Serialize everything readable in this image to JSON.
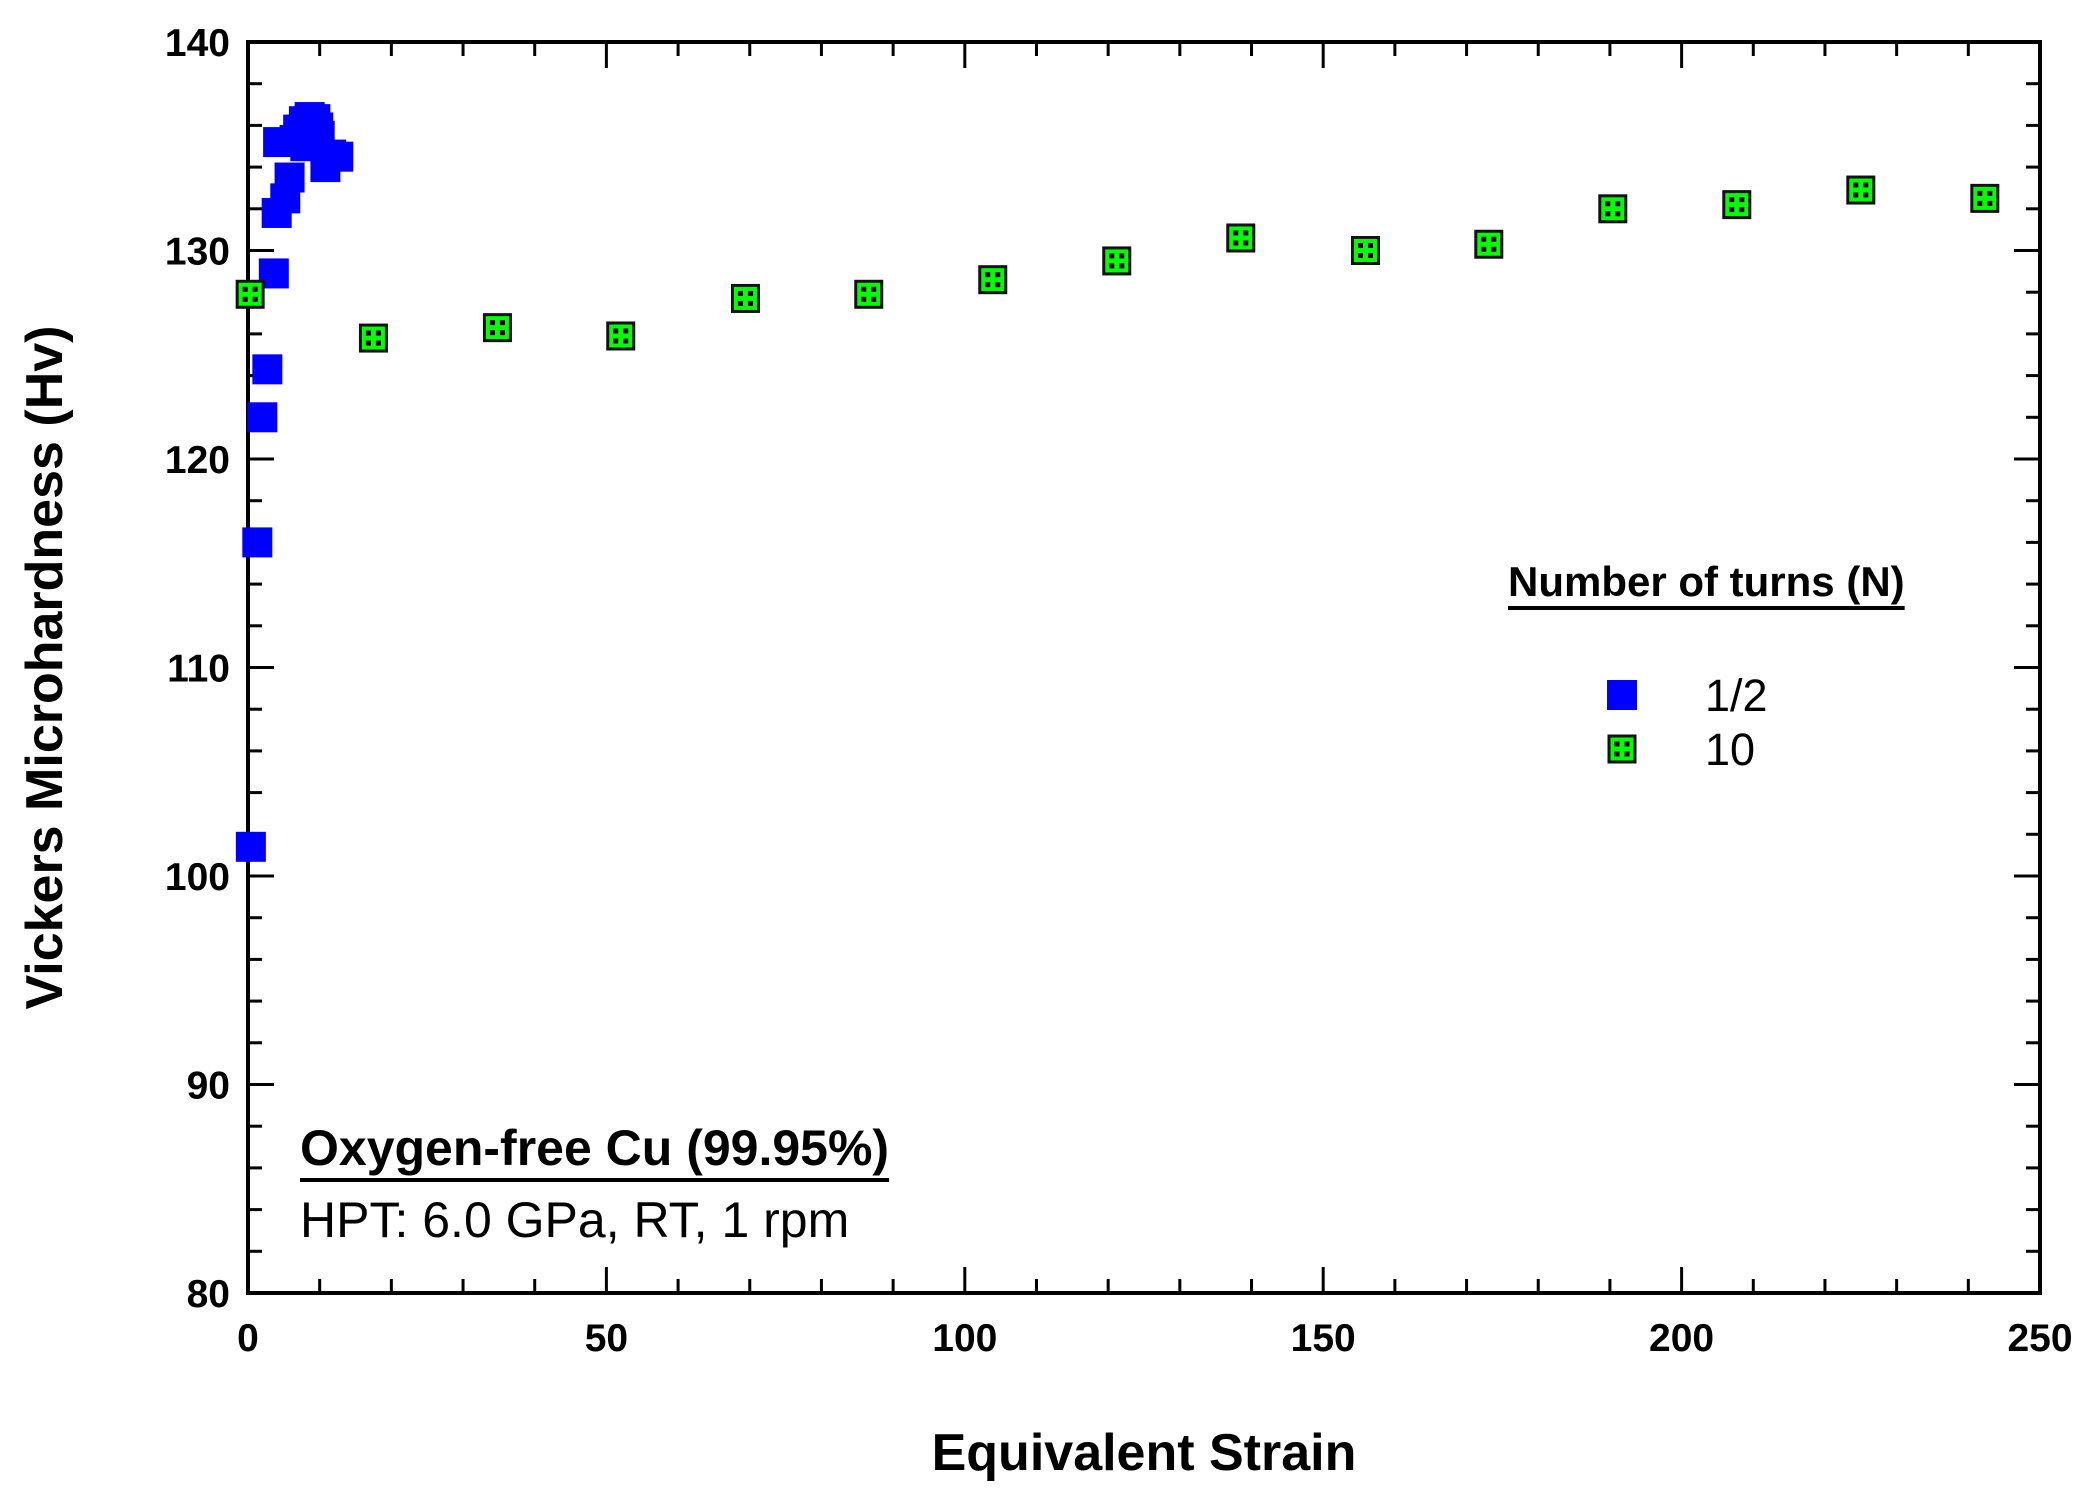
{
  "chart_data": {
    "type": "scatter",
    "xlabel": "Equivalent Strain",
    "ylabel": "Vickers Microhardness (Hv)",
    "xlim": [
      0,
      250
    ],
    "ylim": [
      80,
      140
    ],
    "x_ticks": [
      "0",
      "50",
      "100",
      "150",
      "200",
      "250"
    ],
    "y_ticks": [
      "80",
      "90",
      "100",
      "110",
      "120",
      "130",
      "140"
    ],
    "grid": false,
    "legend": {
      "title": "Number of turns (N)",
      "placement": "right-middle"
    },
    "annotation": {
      "title": "Oxygen-free Cu (99.95%)",
      "subtitle": "HPT: 6.0 GPa, RT, 1 rpm",
      "placement": "bottom-left"
    },
    "series": [
      {
        "name": "1/2",
        "color": "#0000ff",
        "marker": "filled-square",
        "points": [
          [
            0.4,
            101.4
          ],
          [
            1.3,
            116.0
          ],
          [
            2.0,
            122.0
          ],
          [
            2.7,
            124.3
          ],
          [
            3.6,
            128.9
          ],
          [
            4.0,
            131.8
          ],
          [
            4.2,
            135.2
          ],
          [
            5.2,
            132.5
          ],
          [
            5.8,
            133.5
          ],
          [
            6.5,
            135.3
          ],
          [
            7.0,
            135.8
          ],
          [
            7.8,
            136.2
          ],
          [
            8.6,
            136.4
          ],
          [
            9.4,
            136.3
          ],
          [
            10.0,
            135.5
          ],
          [
            10.8,
            134.0
          ],
          [
            11.6,
            134.6
          ],
          [
            12.6,
            134.5
          ],
          [
            8.0,
            135.0
          ],
          [
            9.8,
            135.9
          ]
        ]
      },
      {
        "name": "10",
        "color": "#00ff00",
        "marker": "square-with-dots",
        "points": [
          [
            0.3,
            127.9
          ],
          [
            17.5,
            125.8
          ],
          [
            34.8,
            126.3
          ],
          [
            52.0,
            125.9
          ],
          [
            69.4,
            127.7
          ],
          [
            86.6,
            127.9
          ],
          [
            103.9,
            128.6
          ],
          [
            121.2,
            129.5
          ],
          [
            138.5,
            130.6
          ],
          [
            155.9,
            130.0
          ],
          [
            173.1,
            130.3
          ],
          [
            190.4,
            132.0
          ],
          [
            207.7,
            132.2
          ],
          [
            225.0,
            132.9
          ],
          [
            242.3,
            132.5
          ]
        ]
      }
    ]
  }
}
